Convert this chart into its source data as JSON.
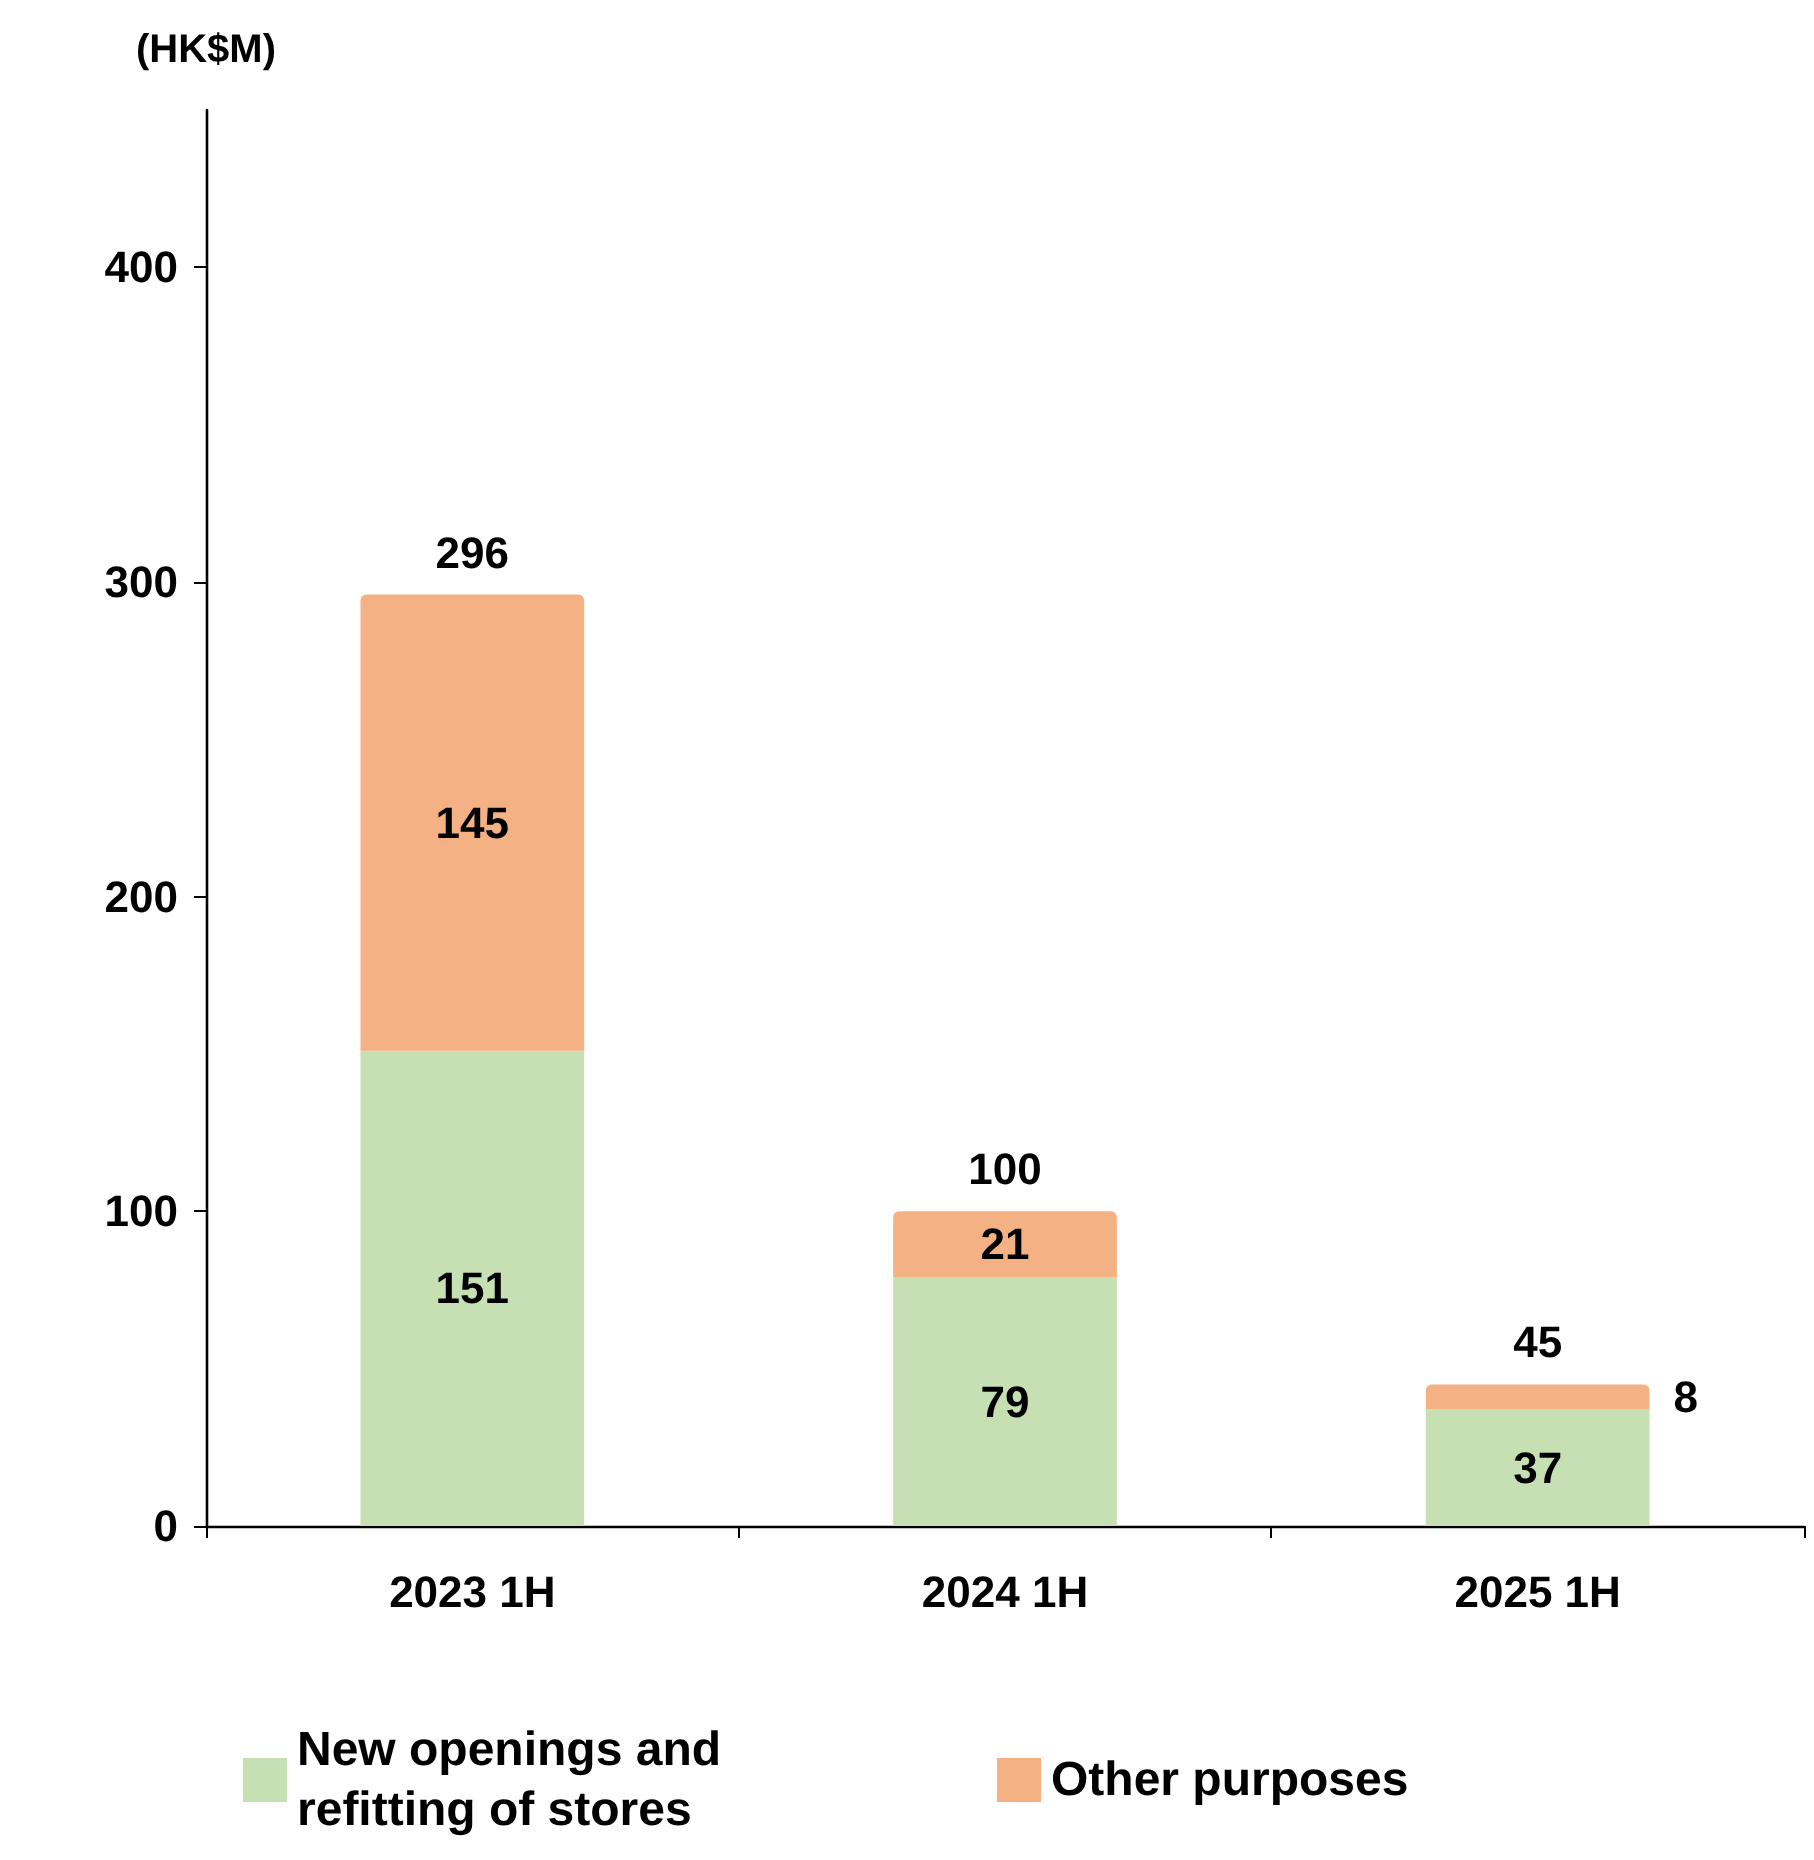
{
  "chart_data": {
    "type": "bar",
    "ylabel": "(HK$M)",
    "categories": [
      "2023 1H",
      "2024 1H",
      "2025 1H"
    ],
    "stacked": true,
    "series": [
      {
        "name": "New openings and refitting of stores",
        "color": "#c6e0b4",
        "values": [
          151,
          79,
          37
        ]
      },
      {
        "name": "Other purposes",
        "color": "#f4b183",
        "values": [
          145,
          21,
          8
        ]
      }
    ],
    "totals": [
      "296",
      "100",
      "45"
    ],
    "data_labels": true,
    "ylim": [
      0,
      450
    ],
    "yticks": [
      0,
      100,
      200,
      300,
      400
    ],
    "grid": false,
    "legend": "bottom"
  }
}
